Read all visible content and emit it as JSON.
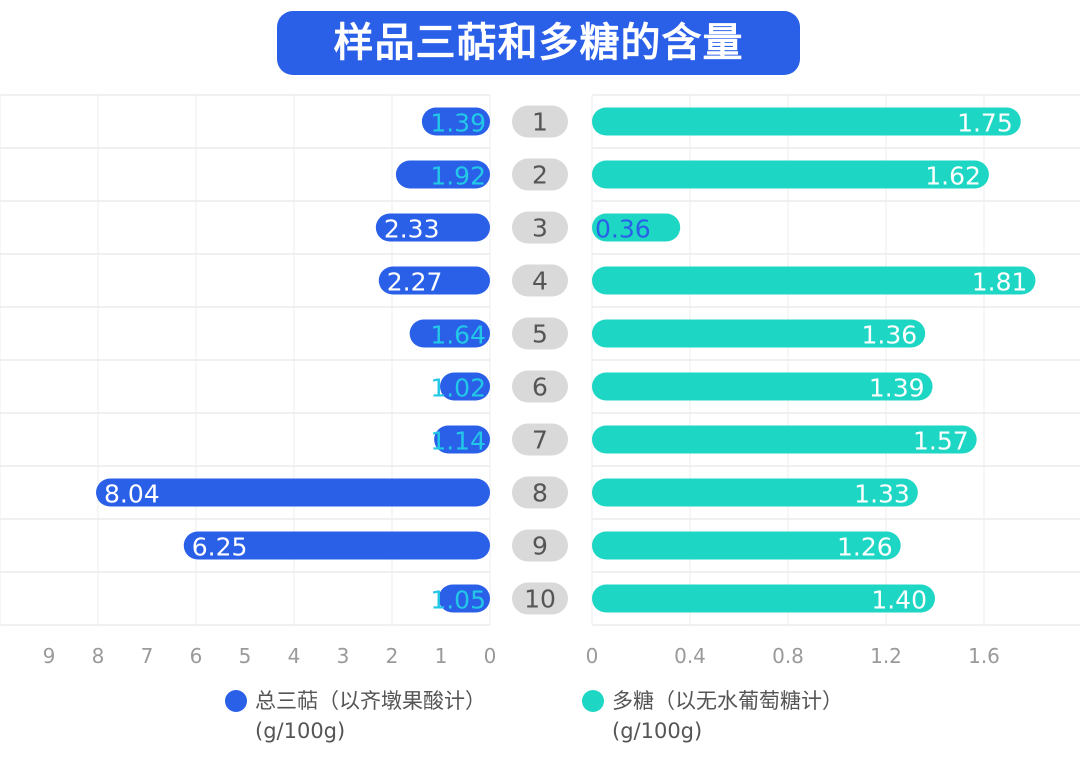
{
  "chart_data": {
    "type": "bar",
    "title": "样品三萜和多糖的含量",
    "categories": [
      "1",
      "2",
      "3",
      "4",
      "5",
      "6",
      "7",
      "8",
      "9",
      "10"
    ],
    "series": [
      {
        "name": "总三萜（以齐墩果酸计）(g/100g)",
        "values": [
          1.39,
          1.92,
          2.33,
          2.27,
          1.64,
          1.02,
          1.14,
          8.04,
          6.25,
          1.05
        ],
        "color": "#2a5fe8",
        "axis": "left",
        "xlim": [
          9,
          0
        ],
        "ticks": [
          9,
          8,
          7,
          6,
          5,
          4,
          3,
          2,
          1,
          0
        ]
      },
      {
        "name": "多糖（以无水葡萄糖计）(g/100g)",
        "values": [
          1.75,
          1.62,
          0.36,
          1.81,
          1.36,
          1.39,
          1.57,
          1.33,
          1.26,
          1.4
        ],
        "color": "#1dd6c4",
        "axis": "right",
        "xlim": [
          0,
          2.0
        ],
        "ticks": [
          "0",
          "0.4",
          "0.8",
          "1.2",
          "1.6"
        ]
      }
    ],
    "legend": {
      "position": "bottom",
      "items": [
        {
          "line1": "总三萜（以齐墩果酸计）",
          "line2": "(g/100g)"
        },
        {
          "line1": "多糖（以无水葡萄糖计）",
          "line2": "(g/100g)"
        }
      ]
    },
    "grid": true
  }
}
